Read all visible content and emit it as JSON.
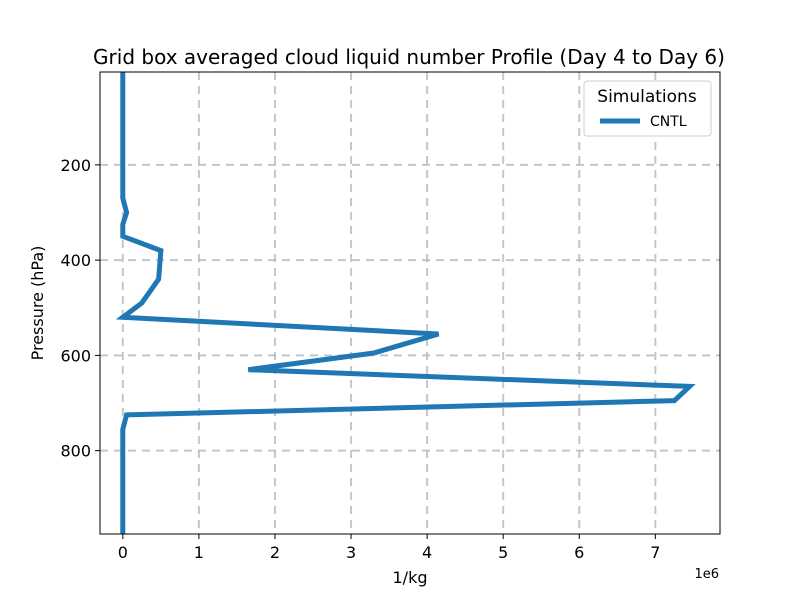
{
  "chart_data": {
    "type": "line",
    "title": "Grid box averaged cloud liquid number Profile (Day 4 to Day 6)",
    "xlabel": "1/kg",
    "ylabel": "Pressure (hPa)",
    "x_offset_label": "1e6",
    "x_scale": 1000000,
    "xlim": [
      -300000,
      7850000
    ],
    "ylim": [
      975,
      5
    ],
    "y_inverted": true,
    "x_ticks": [
      0,
      1000000,
      2000000,
      3000000,
      4000000,
      5000000,
      6000000,
      7000000
    ],
    "x_tick_labels": [
      "0",
      "1",
      "2",
      "3",
      "4",
      "5",
      "6",
      "7"
    ],
    "y_ticks": [
      200,
      400,
      600,
      800
    ],
    "y_tick_labels": [
      "200",
      "400",
      "600",
      "800"
    ],
    "grid": true,
    "legend": {
      "title": "Simulations",
      "position": "top-right"
    },
    "series": [
      {
        "name": "CNTL",
        "color": "#1f77b4",
        "points": [
          {
            "x": 0,
            "y": 5
          },
          {
            "x": 0,
            "y": 270
          },
          {
            "x": 50000,
            "y": 300
          },
          {
            "x": 0,
            "y": 325
          },
          {
            "x": 0,
            "y": 350
          },
          {
            "x": 500000,
            "y": 380
          },
          {
            "x": 470000,
            "y": 440
          },
          {
            "x": 250000,
            "y": 490
          },
          {
            "x": 0,
            "y": 520
          },
          {
            "x": 4150000,
            "y": 555
          },
          {
            "x": 3300000,
            "y": 595
          },
          {
            "x": 1650000,
            "y": 630
          },
          {
            "x": 7450000,
            "y": 665
          },
          {
            "x": 7250000,
            "y": 695
          },
          {
            "x": 50000,
            "y": 725
          },
          {
            "x": 0,
            "y": 755
          },
          {
            "x": 0,
            "y": 975
          }
        ]
      }
    ]
  }
}
